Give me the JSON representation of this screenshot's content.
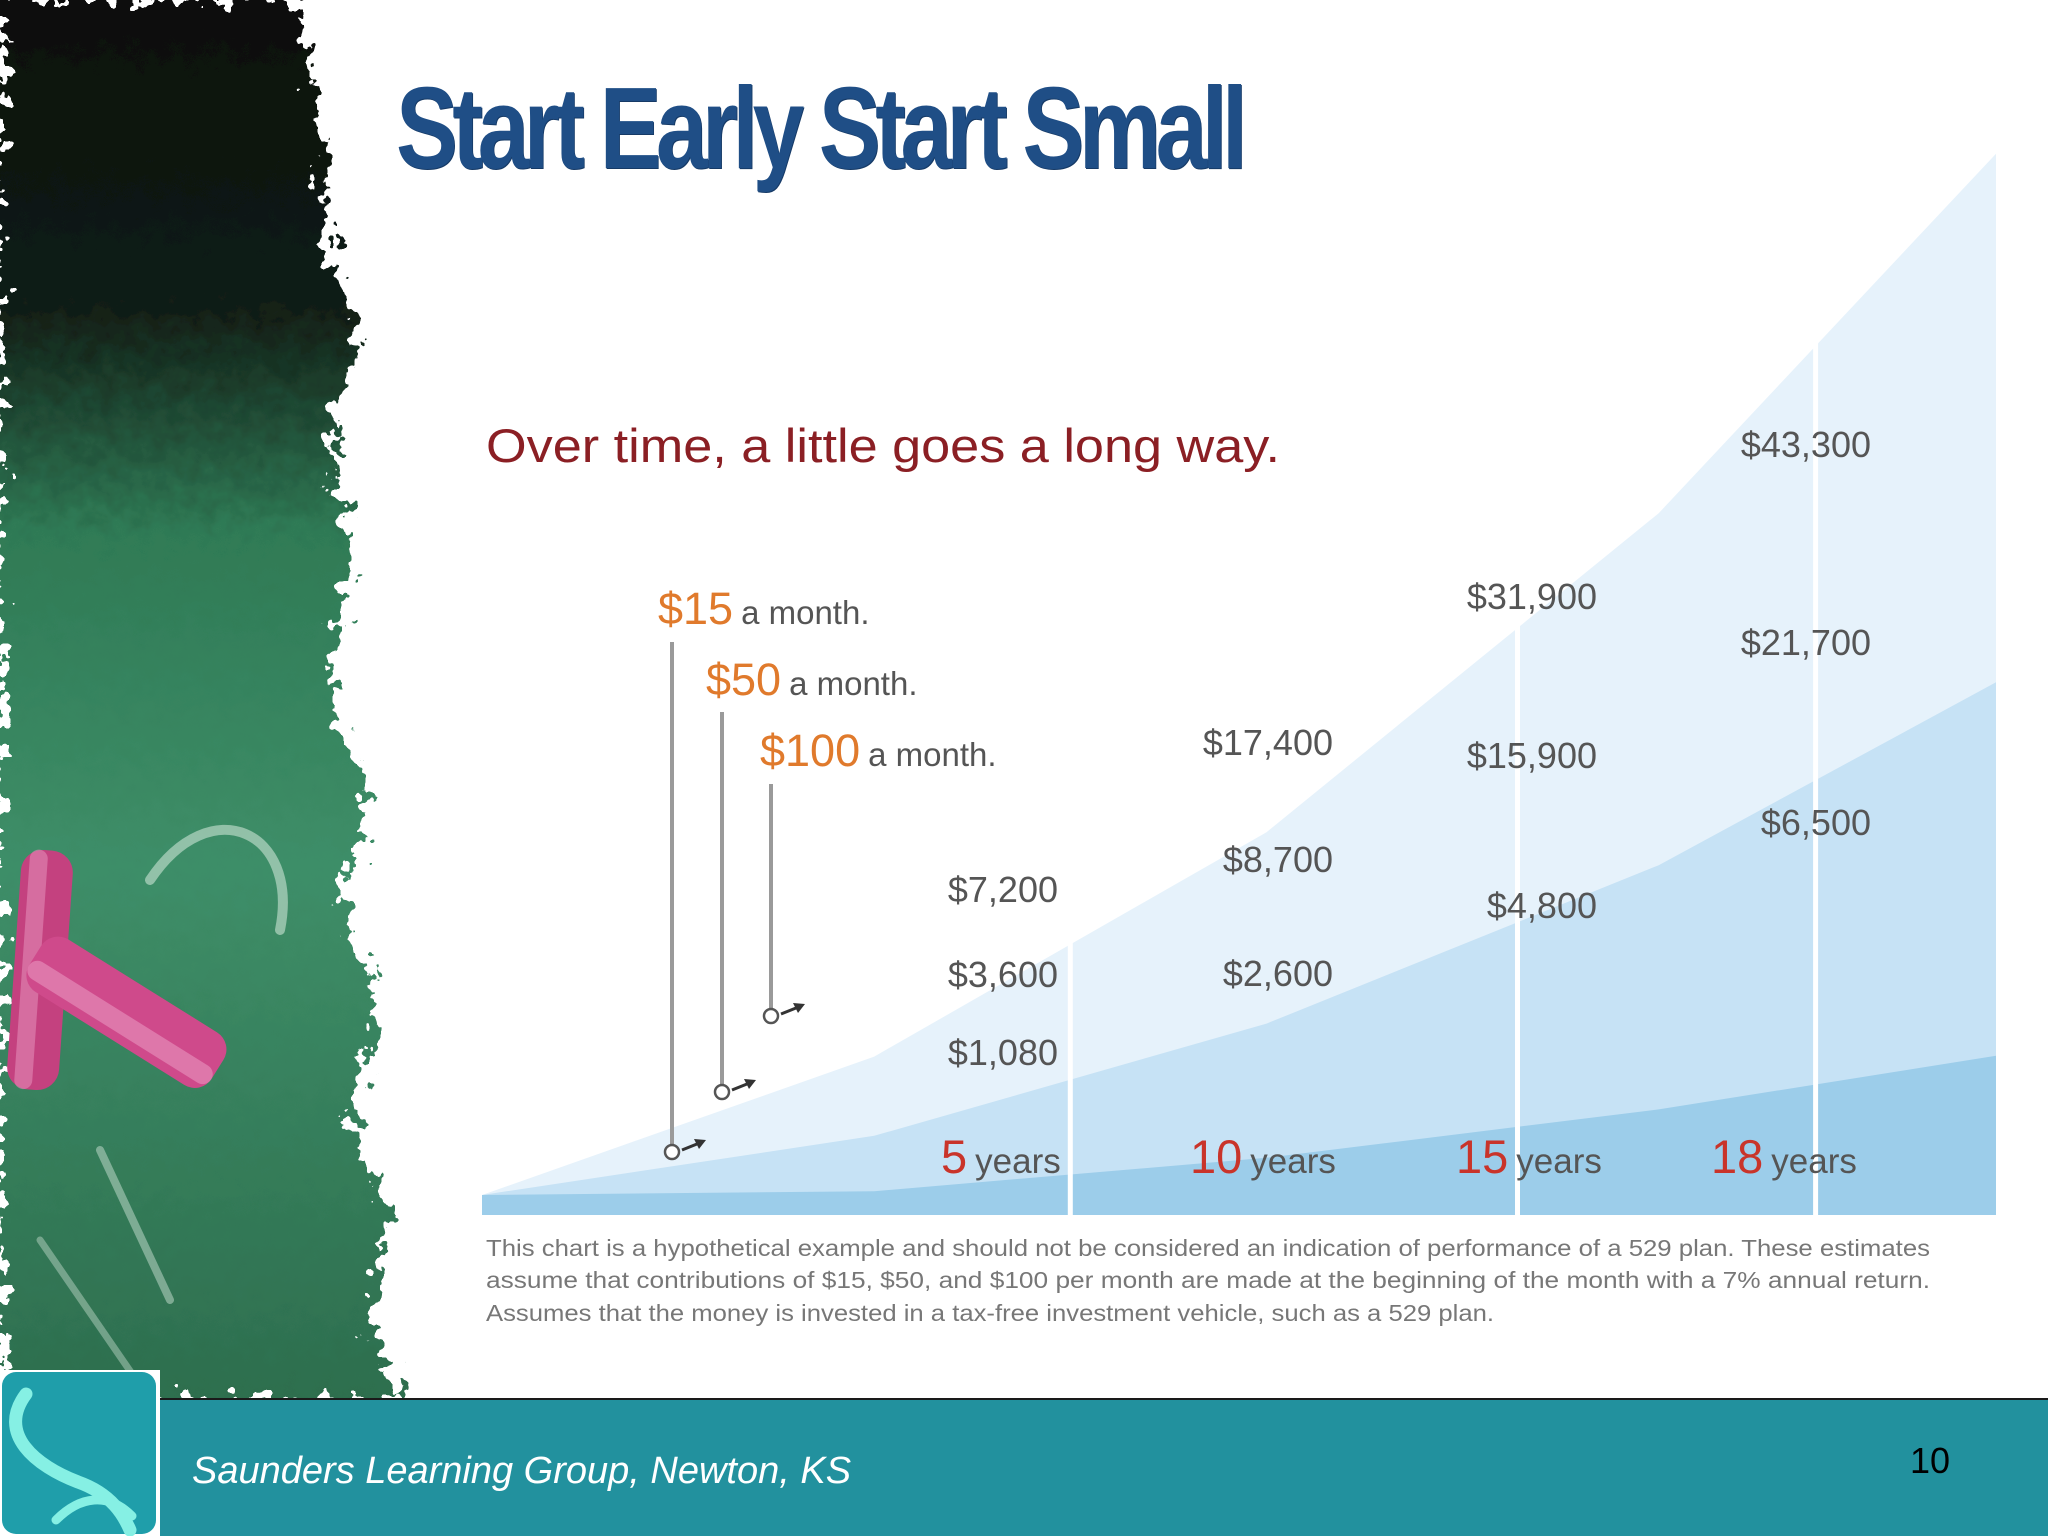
{
  "slide": {
    "title": "Start Early Start Small",
    "footer_org": "Saunders Learning Group, Newton, KS",
    "page_number": "10"
  },
  "chart_data": {
    "type": "area",
    "title": "Over time, a little goes a long way.",
    "x": [
      5,
      10,
      15,
      18
    ],
    "x_tick_labels": [
      {
        "num": "5",
        "unit": "years"
      },
      {
        "num": "10",
        "unit": "years"
      },
      {
        "num": "15",
        "unit": "years"
      },
      {
        "num": "18",
        "unit": "years"
      }
    ],
    "ylim": [
      0,
      43300
    ],
    "series": [
      {
        "name": "$15 a month.",
        "amount": "$15",
        "suffix": "a month.",
        "values": [
          1080,
          2600,
          4800,
          6500
        ],
        "labels": [
          "$1,080",
          "$2,600",
          "$4,800",
          "$6,500"
        ],
        "color": "#9ccdea"
      },
      {
        "name": "$50 a month.",
        "amount": "$50",
        "suffix": "a month.",
        "values": [
          3600,
          8700,
          15900,
          21700
        ],
        "labels": [
          "$3,600",
          "$8,700",
          "$15,900",
          "$21,700"
        ],
        "color": "#c6e2f5"
      },
      {
        "name": "$100 a month.",
        "amount": "$100",
        "suffix": "a month.",
        "values": [
          7200,
          17400,
          31900,
          43300
        ],
        "labels": [
          "$7,200",
          "$17,400",
          "$31,900",
          "$43,300"
        ],
        "color": "#e6f2fb"
      }
    ],
    "footnote": [
      "This chart is a hypothetical example and should not be considered an indication of performance of a 529 plan. These estimates",
      "assume that contributions of $15, $50, and $100 per month are made at the beginning of the month with a 7% annual return.",
      "Assumes that the money is invested in a tax-free investment vehicle, such as a 529 plan."
    ],
    "colors": {
      "title": "#8b1f24",
      "amount": "#e07a2c",
      "year_number": "#c9342a",
      "value_label": "#555555",
      "footnote": "#777777"
    },
    "grid": false,
    "legend_placement": "top-left"
  }
}
